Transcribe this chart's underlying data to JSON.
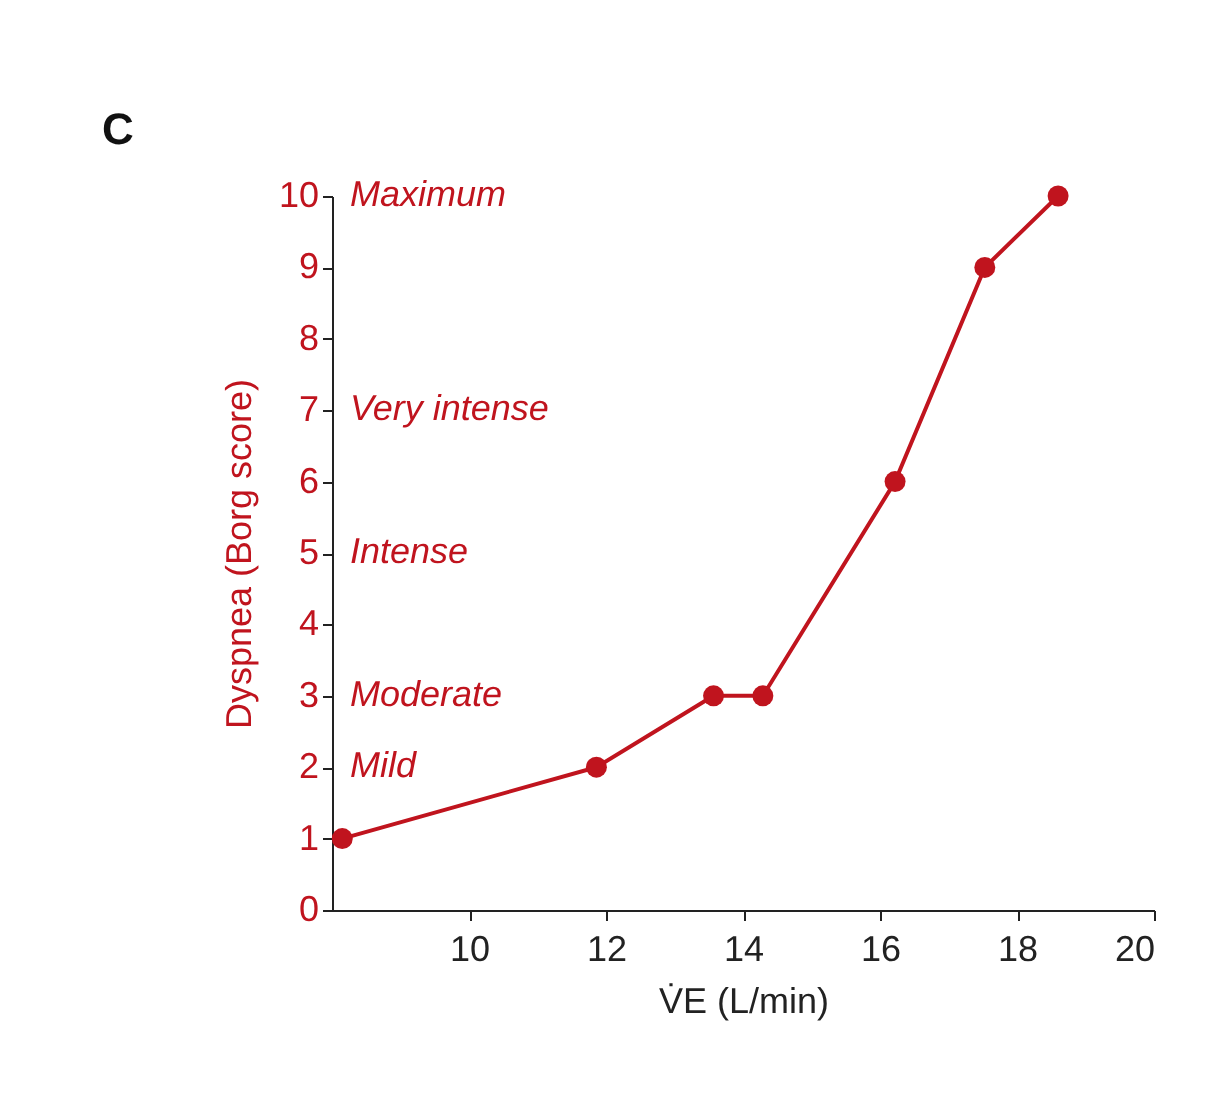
{
  "chart_data": {
    "type": "line",
    "title": "C",
    "xlabel": "V̇E (L/min)",
    "ylabel": "Dyspnea (Borg score)",
    "x": [
      8.15,
      11.86,
      13.57,
      14.29,
      16.22,
      17.53,
      18.6
    ],
    "series": [
      {
        "color": "#c0141e",
        "values": [
          1,
          2,
          3,
          3,
          6,
          9,
          10
        ]
      }
    ],
    "xlim": [
      8,
      20
    ],
    "xticks": [
      10,
      12,
      14,
      16,
      18,
      20
    ],
    "ylim": [
      0,
      10
    ],
    "yticks": [
      0,
      1,
      2,
      3,
      4,
      5,
      6,
      7,
      8,
      9,
      10
    ],
    "annotations": [
      "Maximum",
      "Very intense",
      "Intense",
      "Moderate",
      "Mild"
    ],
    "marker": "circle",
    "line_style": "solid",
    "grid": false,
    "legend": false
  }
}
